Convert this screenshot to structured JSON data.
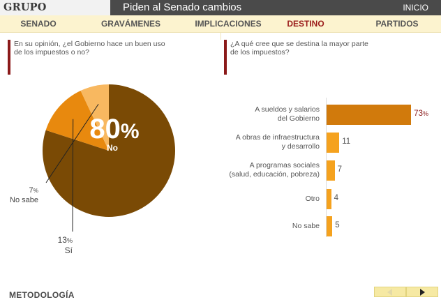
{
  "header": {
    "brand": "GRUPO REFORMA",
    "title": "Piden al Senado cambios",
    "home_link": "INICIO"
  },
  "tabs": [
    {
      "label": "SENADO"
    },
    {
      "label": "GRAVÁMENES"
    },
    {
      "label": "IMPLICACIONES"
    },
    {
      "label": "DESTINO",
      "active": true
    },
    {
      "label": "PARTIDOS"
    }
  ],
  "left_question": {
    "line1": "En su opinión, ¿el Gobierno hace un buen uso",
    "line2": "de los impuestos o no?"
  },
  "right_question": {
    "line1": "¿A qué cree que se destina la mayor parte",
    "line2": "de los impuestos?"
  },
  "footer": {
    "methodology_label": "METODOLOGÍA"
  },
  "colors": {
    "accent": "#8b1a1a",
    "pie_no": "#7a4a05",
    "pie_si": "#e8890e",
    "pie_nosabe": "#f8b860",
    "bar_main": "#d17a0c",
    "bar_other": "#f5a21e"
  },
  "chart_data": [
    {
      "type": "pie",
      "slices": [
        {
          "label": "No",
          "value": 80
        },
        {
          "label": "Sí",
          "value": 13
        },
        {
          "label": "No sabe",
          "value": 7
        }
      ],
      "unit": "%"
    },
    {
      "type": "bar",
      "orientation": "horizontal",
      "categories": [
        [
          "A sueldos y salarios",
          "del Gobierno"
        ],
        [
          "A obras de infraestructura",
          "y desarrollo"
        ],
        [
          "A programas sociales",
          "(salud, educación, pobreza)"
        ],
        [
          "Otro"
        ],
        [
          "No sabe"
        ]
      ],
      "values": [
        73,
        11,
        7,
        4,
        5
      ],
      "first_value_unit": "%"
    }
  ]
}
